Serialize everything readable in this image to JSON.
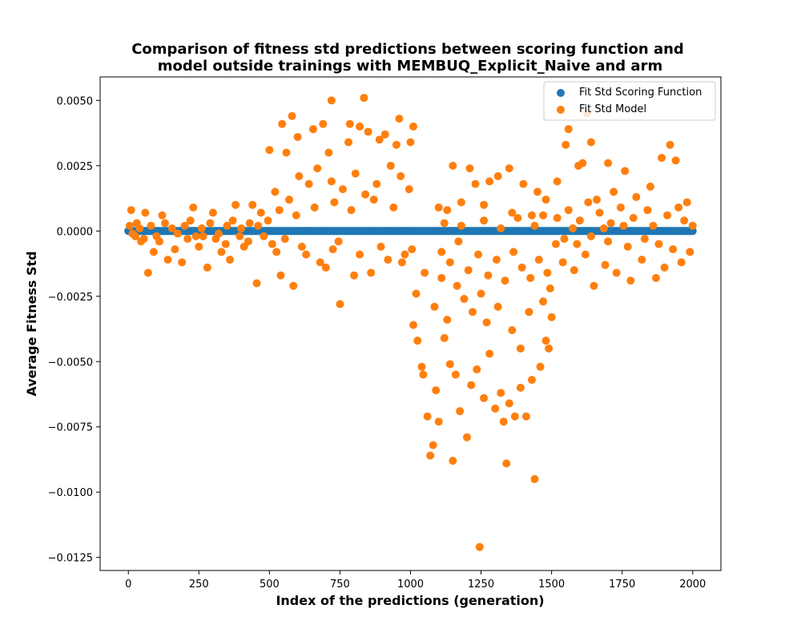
{
  "chart_data": {
    "type": "scatter",
    "title": [
      "Comparison of fitness std predictions between scoring function and",
      "model outside trainings with MEMBUQ_Explicit_Naive and arm"
    ],
    "xlabel": "Index of the predictions (generation)",
    "ylabel": "Average Fitness Std",
    "xlim": [
      -100,
      2100
    ],
    "ylim": [
      -0.013,
      0.0059
    ],
    "xticks": [
      0,
      250,
      500,
      750,
      1000,
      1250,
      1500,
      1750,
      2000
    ],
    "xtick_labels": [
      "0",
      "250",
      "500",
      "750",
      "1000",
      "1250",
      "1500",
      "1750",
      "2000"
    ],
    "yticks": [
      -0.0125,
      -0.01,
      -0.0075,
      -0.005,
      -0.0025,
      0,
      0.0025,
      0.005
    ],
    "ytick_labels": [
      "−0.0125",
      "−0.0100",
      "−0.0075",
      "−0.0050",
      "−0.0025",
      "0.0000",
      "0.0025",
      "0.0050"
    ],
    "grid": false,
    "legend_position": "top-right",
    "series": [
      {
        "name": "Fit Std Scoring Function",
        "color": "#1f77b4",
        "x_range": [
          0,
          2000
        ],
        "y": 0.0
      },
      {
        "name": "Fit Std Model",
        "color": "#ff7f0e",
        "points": [
          [
            835,
            0.0051
          ],
          [
            720,
            0.005
          ],
          [
            1625,
            0.0045
          ],
          [
            580,
            0.0044
          ],
          [
            545,
            0.0041
          ],
          [
            690,
            0.0041
          ],
          [
            785,
            0.0041
          ],
          [
            820,
            0.004
          ],
          [
            960,
            0.0043
          ],
          [
            1010,
            0.004
          ],
          [
            1560,
            0.0039
          ],
          [
            655,
            0.0039
          ],
          [
            850,
            0.0038
          ],
          [
            600,
            0.0036
          ],
          [
            910,
            0.0037
          ],
          [
            1640,
            0.0034
          ],
          [
            890,
            0.0035
          ],
          [
            780,
            0.0034
          ],
          [
            1920,
            0.0033
          ],
          [
            500,
            0.0031
          ],
          [
            560,
            0.003
          ],
          [
            710,
            0.003
          ],
          [
            950,
            0.0033
          ],
          [
            1000,
            0.0034
          ],
          [
            1550,
            0.0033
          ],
          [
            1595,
            0.0025
          ],
          [
            1610,
            0.0026
          ],
          [
            1700,
            0.0026
          ],
          [
            1760,
            0.0023
          ],
          [
            1890,
            0.0028
          ],
          [
            1940,
            0.0027
          ],
          [
            1150,
            0.0025
          ],
          [
            1210,
            0.0024
          ],
          [
            1310,
            0.0021
          ],
          [
            1350,
            0.0024
          ],
          [
            1280,
            0.0019
          ],
          [
            1230,
            0.0018
          ],
          [
            1400,
            0.0018
          ],
          [
            1520,
            0.0019
          ],
          [
            1450,
            0.0015
          ],
          [
            1480,
            0.0012
          ],
          [
            380,
            0.001
          ],
          [
            440,
            0.001
          ],
          [
            470,
            0.0007
          ],
          [
            300,
            0.0007
          ],
          [
            230,
            0.0009
          ],
          [
            120,
            0.0006
          ],
          [
            60,
            0.0007
          ],
          [
            10,
            0.0008
          ],
          [
            1100,
            0.0009
          ],
          [
            1130,
            0.0008
          ],
          [
            1180,
            0.0011
          ],
          [
            1260,
            0.001
          ],
          [
            1360,
            0.0007
          ],
          [
            1430,
            0.0006
          ],
          [
            1660,
            0.0012
          ],
          [
            1720,
            0.0015
          ],
          [
            1800,
            0.0013
          ],
          [
            1850,
            0.0017
          ],
          [
            1980,
            0.0011
          ],
          [
            1950,
            0.0009
          ],
          [
            45,
            -0.0004
          ],
          [
            90,
            -0.0008
          ],
          [
            140,
            -0.0011
          ],
          [
            190,
            -0.0012
          ],
          [
            250,
            -0.0006
          ],
          [
            280,
            -0.0014
          ],
          [
            330,
            -0.0008
          ],
          [
            360,
            -0.0011
          ],
          [
            410,
            -0.0006
          ],
          [
            455,
            -0.002
          ],
          [
            510,
            -0.0005
          ],
          [
            540,
            -0.0017
          ],
          [
            585,
            -0.0021
          ],
          [
            630,
            -0.0009
          ],
          [
            700,
            -0.0014
          ],
          [
            750,
            -0.0028
          ],
          [
            800,
            -0.0017
          ],
          [
            860,
            -0.0016
          ],
          [
            920,
            -0.0011
          ],
          [
            980,
            -0.0009
          ],
          [
            25,
            -0.0002
          ],
          [
            70,
            -0.0016
          ],
          [
            110,
            -0.0004
          ],
          [
            165,
            -0.0007
          ],
          [
            210,
            -0.0003
          ],
          [
            265,
            -0.0002
          ],
          [
            310,
            -0.0003
          ],
          [
            345,
            -0.0005
          ],
          [
            395,
            -0.0002
          ],
          [
            425,
            -0.0004
          ],
          [
            1010,
            -0.0036
          ],
          [
            1025,
            -0.0042
          ],
          [
            1040,
            -0.0052
          ],
          [
            1045,
            -0.0055
          ],
          [
            1060,
            -0.0071
          ],
          [
            1070,
            -0.0086
          ],
          [
            1080,
            -0.0082
          ],
          [
            1090,
            -0.0061
          ],
          [
            1100,
            -0.0073
          ],
          [
            1120,
            -0.0041
          ],
          [
            1140,
            -0.0051
          ],
          [
            1160,
            -0.0055
          ],
          [
            1175,
            -0.0069
          ],
          [
            1150,
            -0.0088
          ],
          [
            1200,
            -0.0079
          ],
          [
            1215,
            -0.0059
          ],
          [
            1235,
            -0.0053
          ],
          [
            1245,
            -0.0121
          ],
          [
            1260,
            -0.0064
          ],
          [
            1280,
            -0.0047
          ],
          [
            1300,
            -0.0068
          ],
          [
            1320,
            -0.0062
          ],
          [
            1330,
            -0.0073
          ],
          [
            1340,
            -0.0089
          ],
          [
            1350,
            -0.0066
          ],
          [
            1370,
            -0.0071
          ],
          [
            1390,
            -0.006
          ],
          [
            1410,
            -0.0071
          ],
          [
            1430,
            -0.0057
          ],
          [
            1440,
            -0.0095
          ],
          [
            1460,
            -0.0052
          ],
          [
            1480,
            -0.0042
          ],
          [
            1490,
            -0.0045
          ],
          [
            1500,
            -0.0033
          ],
          [
            1390,
            -0.0045
          ],
          [
            1360,
            -0.0038
          ],
          [
            1270,
            -0.0035
          ],
          [
            1220,
            -0.0031
          ],
          [
            1190,
            -0.0026
          ],
          [
            1165,
            -0.0021
          ],
          [
            1110,
            -0.0018
          ],
          [
            1050,
            -0.0016
          ],
          [
            1020,
            -0.0024
          ],
          [
            1085,
            -0.0029
          ],
          [
            1130,
            -0.0034
          ],
          [
            1250,
            -0.0024
          ],
          [
            1310,
            -0.0029
          ],
          [
            1420,
            -0.0031
          ],
          [
            1470,
            -0.0027
          ],
          [
            1495,
            -0.0022
          ],
          [
            1540,
            -0.0012
          ],
          [
            1580,
            -0.0015
          ],
          [
            1620,
            -0.0009
          ],
          [
            1650,
            -0.0021
          ],
          [
            1690,
            -0.0013
          ],
          [
            1730,
            -0.0016
          ],
          [
            1780,
            -0.0019
          ],
          [
            1820,
            -0.0011
          ],
          [
            1870,
            -0.0018
          ],
          [
            1900,
            -0.0014
          ],
          [
            1930,
            -0.0007
          ],
          [
            1960,
            -0.0012
          ],
          [
            1990,
            -0.0008
          ],
          [
            1700,
            -0.0004
          ],
          [
            1770,
            -0.0006
          ],
          [
            1830,
            -0.0003
          ],
          [
            1880,
            -0.0005
          ],
          [
            1590,
            -0.0005
          ],
          [
            1640,
            -0.0002
          ],
          [
            1545,
            -0.0003
          ],
          [
            520,
            0.0015
          ],
          [
            570,
            0.0012
          ],
          [
            605,
            0.0021
          ],
          [
            640,
            0.0018
          ],
          [
            670,
            0.0024
          ],
          [
            720,
            0.0019
          ],
          [
            760,
            0.0016
          ],
          [
            805,
            0.0022
          ],
          [
            840,
            0.0014
          ],
          [
            880,
            0.0018
          ],
          [
            930,
            0.0025
          ],
          [
            965,
            0.0021
          ],
          [
            995,
            0.0016
          ],
          [
            535,
            0.0008
          ],
          [
            595,
            0.0006
          ],
          [
            660,
            0.0009
          ],
          [
            730,
            0.0011
          ],
          [
            790,
            0.0008
          ],
          [
            870,
            0.0012
          ],
          [
            940,
            0.0009
          ],
          [
            525,
            -0.0008
          ],
          [
            615,
            -0.0006
          ],
          [
            680,
            -0.0012
          ],
          [
            745,
            -0.0004
          ],
          [
            820,
            -0.0009
          ],
          [
            895,
            -0.0006
          ],
          [
            970,
            -0.0012
          ],
          [
            1005,
            -0.0007
          ],
          [
            555,
            -0.0003
          ],
          [
            725,
            -0.0007
          ],
          [
            1110,
            -0.0008
          ],
          [
            1140,
            -0.0012
          ],
          [
            1170,
            -0.0004
          ],
          [
            1205,
            -0.0015
          ],
          [
            1240,
            -0.0009
          ],
          [
            1275,
            -0.0017
          ],
          [
            1305,
            -0.0011
          ],
          [
            1335,
            -0.0019
          ],
          [
            1365,
            -0.0008
          ],
          [
            1395,
            -0.0014
          ],
          [
            1425,
            -0.0018
          ],
          [
            1455,
            -0.0011
          ],
          [
            1485,
            -0.0016
          ],
          [
            1120,
            0.0003
          ],
          [
            1180,
            0.0002
          ],
          [
            1260,
            0.0004
          ],
          [
            1320,
            0.0001
          ],
          [
            1380,
            0.0005
          ],
          [
            1440,
            0.0002
          ],
          [
            1470,
            0.0006
          ],
          [
            5,
            0.0002
          ],
          [
            15,
            -0.0001
          ],
          [
            30,
            0.0003
          ],
          [
            40,
            0.0001
          ],
          [
            55,
            -0.0003
          ],
          [
            80,
            0.0002
          ],
          [
            100,
            -0.0002
          ],
          [
            130,
            0.0003
          ],
          [
            155,
            0.0001
          ],
          [
            175,
            -0.0001
          ],
          [
            200,
            0.0002
          ],
          [
            220,
            0.0004
          ],
          [
            240,
            -0.0002
          ],
          [
            260,
            0.0001
          ],
          [
            290,
            0.0003
          ],
          [
            320,
            -0.0001
          ],
          [
            350,
            0.0002
          ],
          [
            370,
            0.0004
          ],
          [
            400,
            0.0001
          ],
          [
            430,
            0.0003
          ],
          [
            460,
            0.0002
          ],
          [
            480,
            -0.0002
          ],
          [
            495,
            0.0004
          ],
          [
            1520,
            0.0005
          ],
          [
            1560,
            0.0008
          ],
          [
            1600,
            0.0004
          ],
          [
            1630,
            0.0011
          ],
          [
            1670,
            0.0007
          ],
          [
            1710,
            0.0003
          ],
          [
            1745,
            0.0009
          ],
          [
            1790,
            0.0005
          ],
          [
            1840,
            0.0008
          ],
          [
            1860,
            0.0002
          ],
          [
            1910,
            0.0006
          ],
          [
            1970,
            0.0004
          ],
          [
            2000,
            0.0002
          ],
          [
            1515,
            -0.0005
          ],
          [
            1575,
            0.0001
          ],
          [
            1685,
            0.0001
          ],
          [
            1755,
            0.0002
          ]
        ]
      }
    ]
  }
}
